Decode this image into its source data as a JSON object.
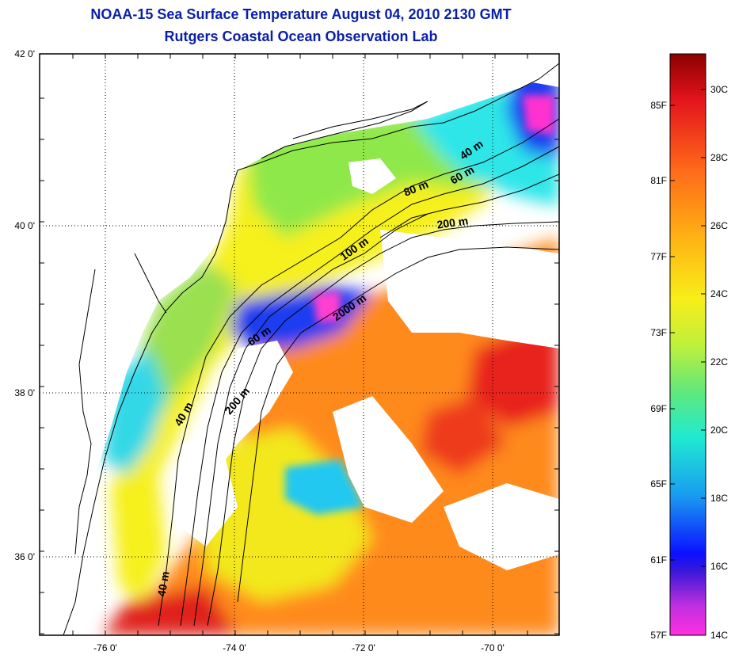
{
  "title_line1": "NOAA-15 Sea Surface Temperature August 04, 2010 2130 GMT",
  "title_line2": "Rutgers Coastal Ocean Observation Lab",
  "map": {
    "lon_ticks": [
      "-76 0'",
      "-74 0'",
      "-72 0'",
      "-70 0'"
    ],
    "lat_ticks": [
      "42 0'",
      "40 0'",
      "38 0'",
      "36 0'"
    ],
    "grid": true,
    "colors": {
      "land": "#ffffff",
      "coast": "#000000",
      "cloud": "#ffffff",
      "warm_offshore": "#ff8a1a",
      "hot_patch": "#e8241a",
      "shelf_yellow": "#f6f01c",
      "shelf_green": "#8fe84a",
      "cool_cyan": "#2ee6e8",
      "cold_blue": "#1a3cf0",
      "coldest_magenta": "#ff30d0"
    },
    "isobath_labels": [
      {
        "text": "40 m"
      },
      {
        "text": "60 m"
      },
      {
        "text": "80 m"
      },
      {
        "text": "200 m"
      },
      {
        "text": "100 m"
      },
      {
        "text": "2000 m"
      },
      {
        "text": "60 m"
      },
      {
        "text": "200 m"
      },
      {
        "text": "40 m"
      },
      {
        "text": "40 m"
      }
    ]
  },
  "colorbar": {
    "fahrenheit_labels": [
      "85F",
      "81F",
      "77F",
      "73F",
      "69F",
      "65F",
      "61F",
      "57F"
    ],
    "celsius_labels": [
      "30C",
      "28C",
      "26C",
      "24C",
      "22C",
      "20C",
      "18C",
      "16C",
      "14C"
    ],
    "stops": [
      {
        "pos": 0.0,
        "color": "#8b0000"
      },
      {
        "pos": 0.08,
        "color": "#e4141c"
      },
      {
        "pos": 0.2,
        "color": "#ff6a1a"
      },
      {
        "pos": 0.32,
        "color": "#ffb414"
      },
      {
        "pos": 0.42,
        "color": "#f8ee18"
      },
      {
        "pos": 0.5,
        "color": "#bff03a"
      },
      {
        "pos": 0.58,
        "color": "#62e87a"
      },
      {
        "pos": 0.66,
        "color": "#1eead0"
      },
      {
        "pos": 0.76,
        "color": "#1a9cf0"
      },
      {
        "pos": 0.86,
        "color": "#0a10ff"
      },
      {
        "pos": 0.89,
        "color": "#3a18d8"
      },
      {
        "pos": 0.95,
        "color": "#c030e0"
      },
      {
        "pos": 1.0,
        "color": "#ff30e0"
      }
    ]
  }
}
